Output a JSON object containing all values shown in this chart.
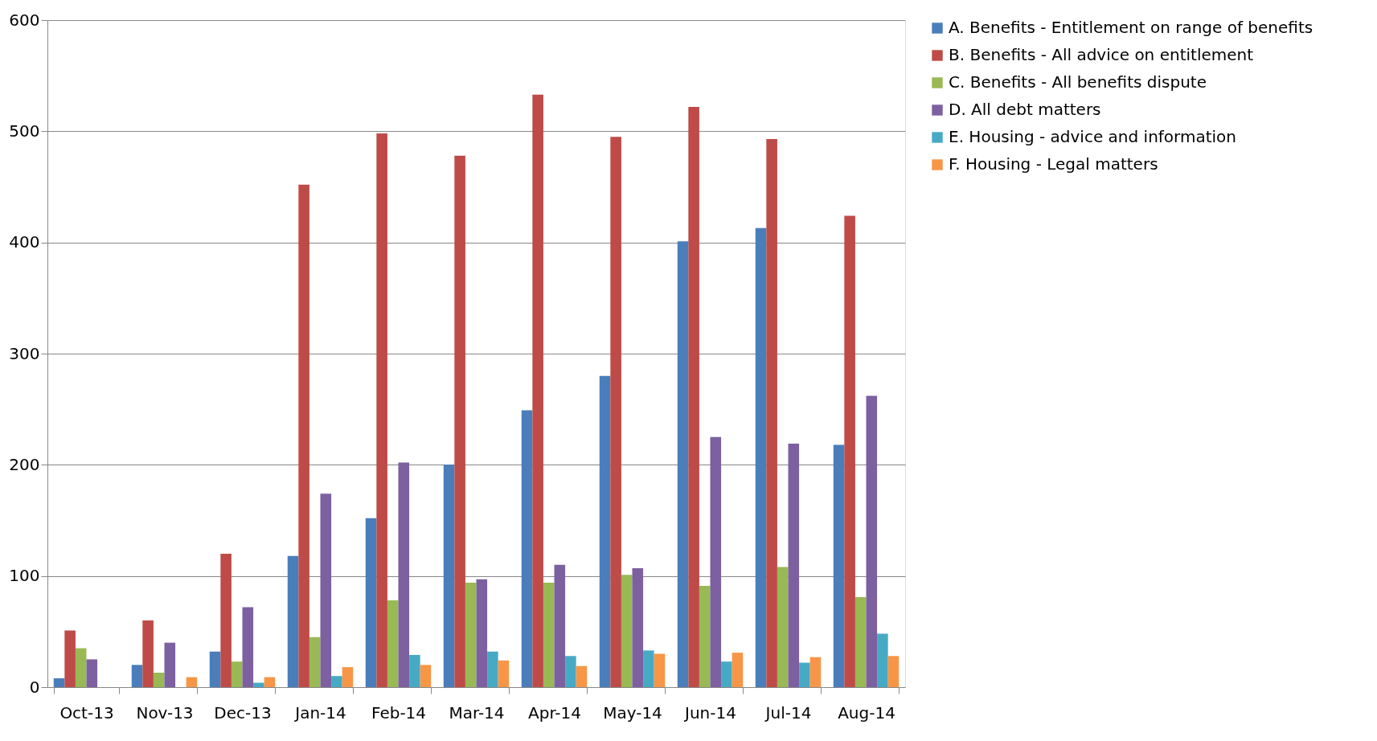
{
  "chart_data": {
    "type": "bar",
    "categories": [
      "Oct-13",
      "Nov-13",
      "Dec-13",
      "Jan-14",
      "Feb-14",
      "Mar-14",
      "Apr-14",
      "May-14",
      "Jun-14",
      "Jul-14",
      "Aug-14"
    ],
    "series": [
      {
        "name": "A. Benefits - Entitlement on range of benefits",
        "color": "#4a7ebb",
        "values": [
          8,
          20,
          32,
          118,
          152,
          200,
          249,
          280,
          401,
          413,
          218
        ]
      },
      {
        "name": "B. Benefits - All advice on entitlement",
        "color": "#be4b48",
        "values": [
          51,
          60,
          120,
          452,
          498,
          478,
          533,
          495,
          522,
          493,
          424
        ]
      },
      {
        "name": "C. Benefits - All benefits dispute",
        "color": "#98b954",
        "values": [
          35,
          13,
          23,
          45,
          78,
          94,
          94,
          101,
          91,
          108,
          81
        ]
      },
      {
        "name": "D. All debt matters",
        "color": "#7d60a0",
        "values": [
          25,
          40,
          72,
          174,
          202,
          97,
          110,
          107,
          225,
          219,
          262
        ]
      },
      {
        "name": "E. Housing - advice and information",
        "color": "#46aac5",
        "values": [
          0,
          0,
          4,
          10,
          29,
          32,
          28,
          33,
          23,
          22,
          48
        ]
      },
      {
        "name": "F. Housing - Legal matters",
        "color": "#f79646",
        "values": [
          0,
          9,
          9,
          18,
          20,
          24,
          19,
          30,
          31,
          27,
          28
        ]
      }
    ],
    "ylim": [
      0,
      600
    ],
    "yticks": [
      0,
      100,
      200,
      300,
      400,
      500,
      600
    ],
    "grid": "y",
    "legend": "right"
  }
}
